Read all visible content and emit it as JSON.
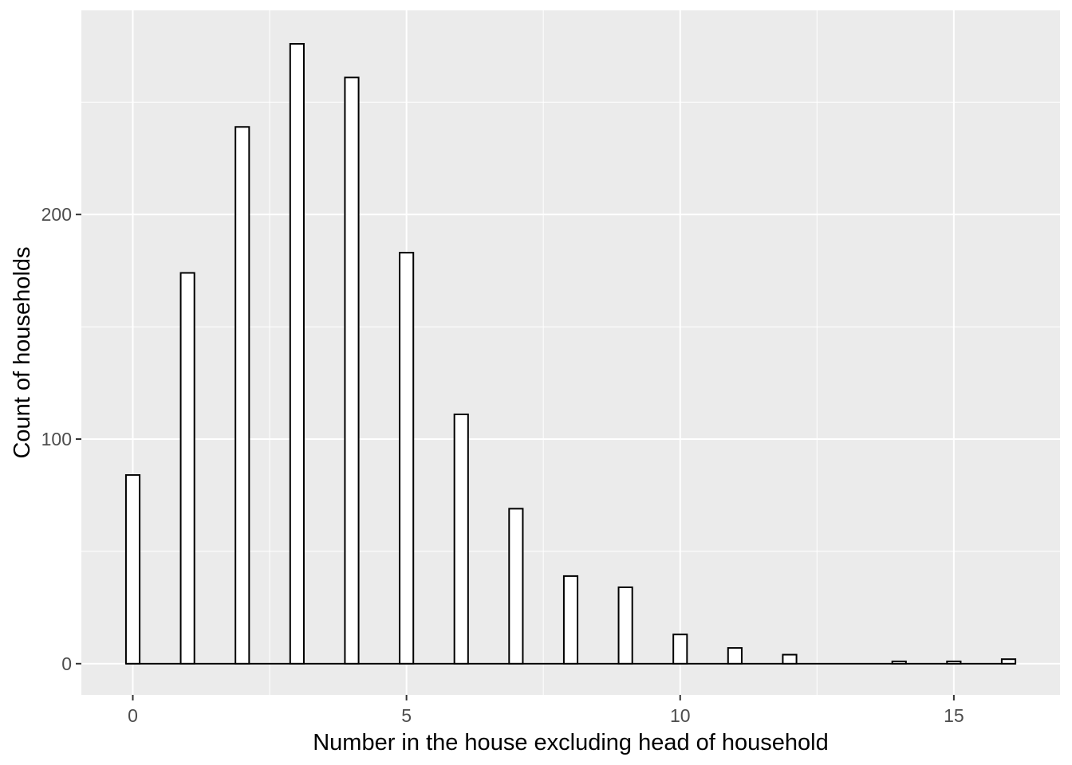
{
  "chart_data": {
    "type": "bar",
    "title": "",
    "xlabel": "Number in the house excluding head of household",
    "ylabel": "Count of households",
    "categories": [
      0,
      1,
      2,
      3,
      4,
      5,
      6,
      7,
      8,
      9,
      10,
      11,
      12,
      13,
      14,
      15,
      16
    ],
    "values": [
      84,
      174,
      239,
      276,
      261,
      183,
      111,
      69,
      39,
      34,
      13,
      7,
      4,
      0,
      1,
      1,
      2
    ],
    "bar_width": 0.25,
    "xlim": [
      -0.94,
      16.94
    ],
    "ylim": [
      -13.9,
      290.9
    ],
    "axes": {
      "x_major_ticks": [
        0,
        5,
        10,
        15
      ],
      "x_tick_labels": [
        "0",
        "5",
        "10",
        "15"
      ],
      "x_minor_ticks": [
        2.5,
        7.5,
        12.5
      ],
      "y_major_ticks": [
        0,
        100,
        200
      ],
      "y_tick_labels": [
        "0",
        "100",
        "200"
      ],
      "y_minor_ticks": [
        50,
        150,
        250
      ]
    },
    "baseline": {
      "y": 0,
      "x_start": -0.125,
      "x_end": 16.125
    },
    "grid": "major and minor gridlines shown",
    "legend": "none",
    "colors": {
      "panel_background": "#EBEBEB",
      "grid": "#FFFFFF",
      "bar_fill": "#FFFFFF",
      "bar_stroke": "#000000",
      "tick_mark": "#333333",
      "tick_label": "#4D4D4D",
      "axis_title": "#000000",
      "figure_background": "#FFFFFF"
    }
  }
}
